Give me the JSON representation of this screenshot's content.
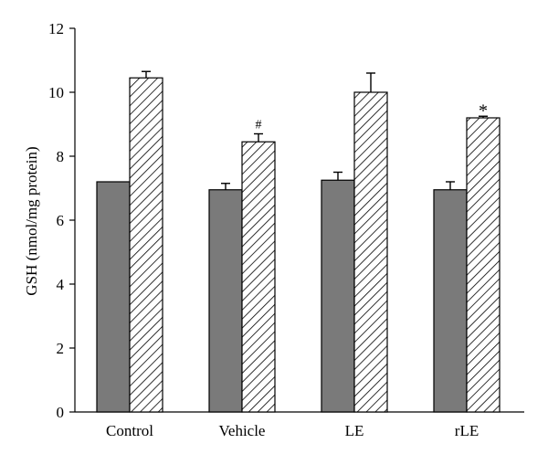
{
  "chart_data": {
    "type": "bar",
    "title": "",
    "xlabel": "",
    "ylabel": "GSH (nmol/mg protein)",
    "ylim": [
      0,
      12
    ],
    "yticks": [
      0,
      2,
      4,
      6,
      8,
      10,
      12
    ],
    "grid": false,
    "categories": [
      "Control",
      "Vehicle",
      "LE",
      "rLE"
    ],
    "series": [
      {
        "style": "solid-gray",
        "color": "#7a7a7a",
        "values": [
          7.2,
          6.95,
          7.25,
          6.95
        ],
        "errors": [
          0.0,
          0.2,
          0.25,
          0.25
        ]
      },
      {
        "style": "hatched",
        "color": "#ffffff",
        "values": [
          10.45,
          8.45,
          10.0,
          9.2
        ],
        "errors": [
          0.2,
          0.25,
          0.6,
          0.05
        ]
      }
    ],
    "annotations": [
      {
        "category_index": 1,
        "series_index": 1,
        "text": "#"
      },
      {
        "category_index": 3,
        "series_index": 1,
        "text": "*"
      }
    ]
  }
}
